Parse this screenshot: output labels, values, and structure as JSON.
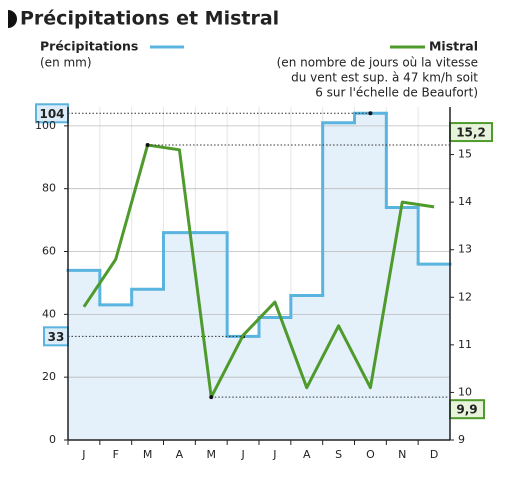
{
  "chart_data": {
    "type": "step-line",
    "title": "Précipitations et Mistral",
    "y_label": "(en mm)",
    "y2_label_lines": [
      "(en nombre de jours où la vitesse",
      "du vent est sup. à 47 km/h soit",
      "6 sur l'échelle de Beaufort)"
    ],
    "categories": [
      "J",
      "F",
      "M",
      "A",
      "M",
      "J",
      "J",
      "A",
      "S",
      "O",
      "N",
      "D"
    ],
    "series": [
      {
        "name": "Précipitations",
        "color": "#5ab4e0",
        "style": "step",
        "values": [
          54,
          43,
          48,
          66,
          66,
          33,
          39,
          46,
          101,
          104,
          74,
          56
        ],
        "value_labels": [
          null,
          null,
          null,
          null,
          null,
          "33",
          null,
          null,
          null,
          "104",
          null,
          null
        ]
      },
      {
        "name": "Mistral",
        "color": "#4f9a2c",
        "style": "line",
        "axis": "y2",
        "values": [
          11.8,
          12.8,
          15.2,
          15.1,
          9.9,
          11.2,
          11.9,
          10.1,
          11.4,
          10.1,
          14.0,
          13.9
        ],
        "value_labels": [
          null,
          null,
          "15,2",
          null,
          "9,9",
          null,
          null,
          null,
          null,
          null,
          null,
          null
        ]
      }
    ],
    "ylim": [
      0,
      106
    ],
    "yticks": [
      0,
      20,
      40,
      60,
      80,
      100
    ],
    "y2lim": [
      9,
      16
    ],
    "y2ticks": [
      9,
      10,
      11,
      12,
      13,
      14,
      15
    ],
    "grid": true
  }
}
